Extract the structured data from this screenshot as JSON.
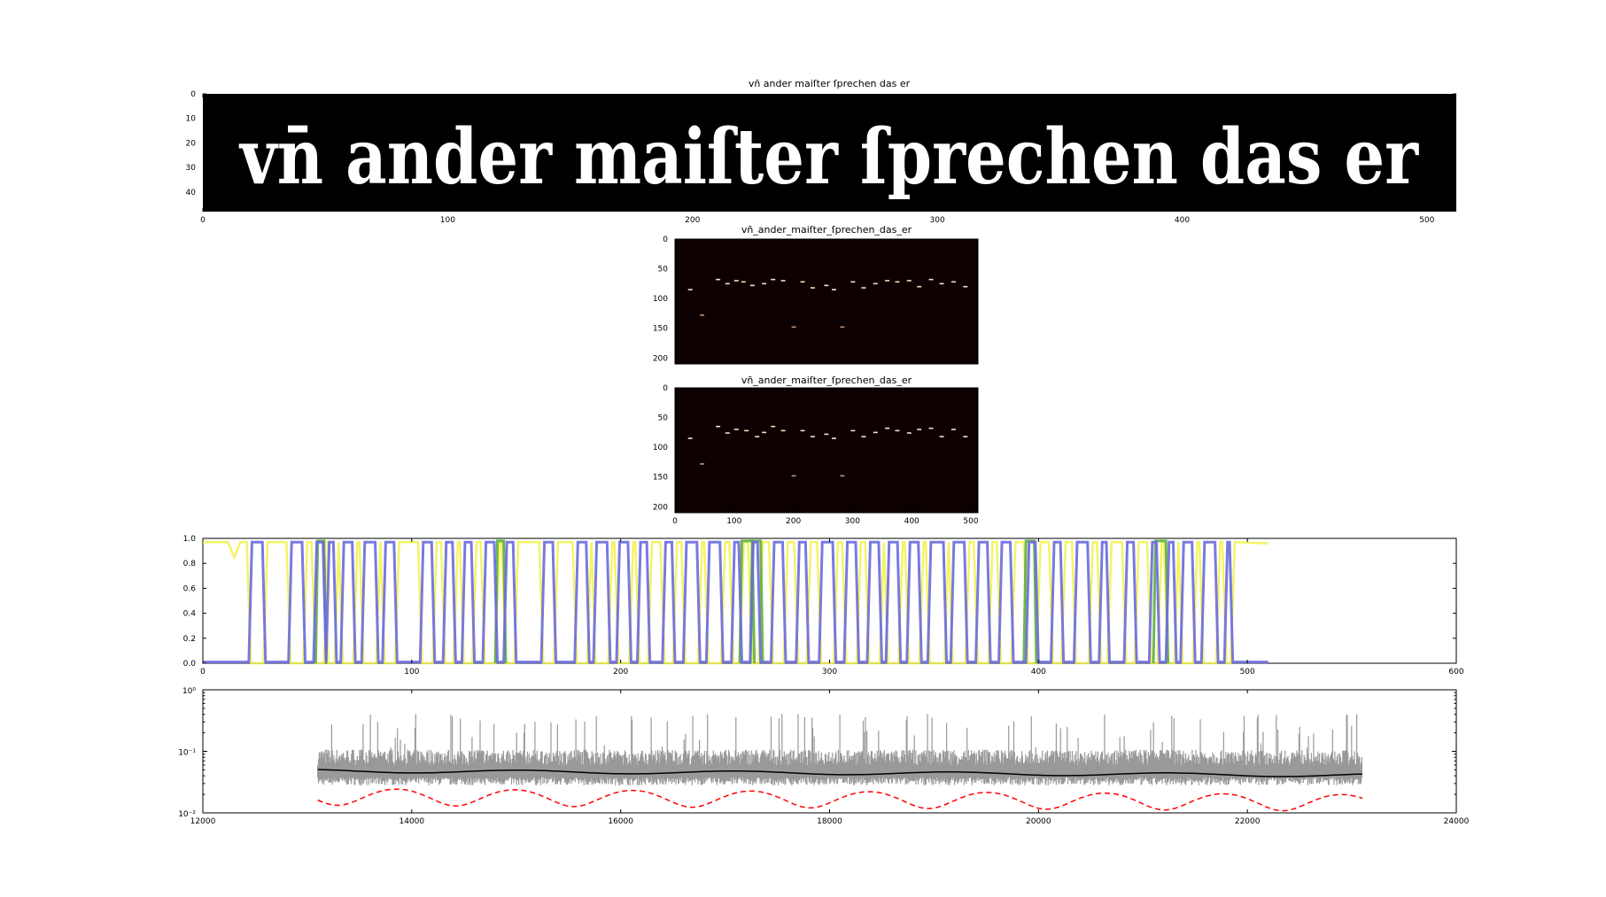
{
  "figure": {
    "panel1_title": "vn̄ ander maiſter ſprechen das er",
    "panel2_title": "vn̄_ander_maiſter_ſprechen_das_er",
    "panel3_title": "vn̄_ander_maiſter_ſprechen_das_er",
    "line_image_text": "vn̄ ander maiſter ſprechen das er"
  },
  "chart_data": [
    {
      "type": "heatmap",
      "title": "vn̄ ander maiſter ſprechen das er",
      "xlabel": "",
      "ylabel": "",
      "xlim": [
        0,
        512
      ],
      "ylim": [
        48,
        0
      ],
      "xticks": [
        0,
        100,
        200,
        300,
        400,
        500
      ],
      "yticks": [
        0,
        10,
        20,
        30,
        40
      ],
      "colormap": "gray"
    },
    {
      "type": "heatmap",
      "title": "vn̄_ander_maiſter_ſprechen_das_er",
      "xlabel": "",
      "ylabel": "",
      "xlim": [
        0,
        512
      ],
      "ylim": [
        210,
        0
      ],
      "xticks": [],
      "yticks": [
        0,
        50,
        100,
        150,
        200
      ],
      "colormap": "hot",
      "points": [
        [
          25,
          85
        ],
        [
          45,
          128
        ],
        [
          72,
          68
        ],
        [
          88,
          75
        ],
        [
          103,
          70
        ],
        [
          115,
          72
        ],
        [
          130,
          78
        ],
        [
          150,
          75
        ],
        [
          165,
          68
        ],
        [
          182,
          70
        ],
        [
          200,
          148
        ],
        [
          215,
          72
        ],
        [
          232,
          82
        ],
        [
          255,
          78
        ],
        [
          268,
          85
        ],
        [
          282,
          148
        ],
        [
          300,
          72
        ],
        [
          318,
          82
        ],
        [
          338,
          75
        ],
        [
          358,
          70
        ],
        [
          375,
          72
        ],
        [
          395,
          70
        ],
        [
          412,
          80
        ],
        [
          432,
          68
        ],
        [
          450,
          75
        ],
        [
          470,
          72
        ],
        [
          490,
          80
        ]
      ]
    },
    {
      "type": "heatmap",
      "title": "vn̄_ander_maiſter_ſprechen_das_er",
      "xlabel": "",
      "ylabel": "",
      "xlim": [
        0,
        512
      ],
      "ylim": [
        210,
        0
      ],
      "xticks": [
        0,
        100,
        200,
        300,
        400,
        500
      ],
      "yticks": [
        0,
        50,
        100,
        150,
        200
      ],
      "colormap": "hot",
      "points": [
        [
          25,
          85
        ],
        [
          45,
          128
        ],
        [
          72,
          65
        ],
        [
          88,
          76
        ],
        [
          103,
          70
        ],
        [
          120,
          72
        ],
        [
          138,
          82
        ],
        [
          150,
          75
        ],
        [
          165,
          65
        ],
        [
          182,
          72
        ],
        [
          200,
          148
        ],
        [
          215,
          72
        ],
        [
          232,
          82
        ],
        [
          255,
          78
        ],
        [
          268,
          85
        ],
        [
          282,
          148
        ],
        [
          300,
          72
        ],
        [
          318,
          82
        ],
        [
          338,
          75
        ],
        [
          358,
          68
        ],
        [
          375,
          72
        ],
        [
          395,
          76
        ],
        [
          412,
          70
        ],
        [
          432,
          68
        ],
        [
          450,
          82
        ],
        [
          470,
          70
        ],
        [
          490,
          82
        ]
      ]
    },
    {
      "type": "line",
      "title": "",
      "xlabel": "",
      "ylabel": "",
      "xlim": [
        0,
        600
      ],
      "ylim": [
        0.0,
        1.0
      ],
      "xticks": [
        0,
        100,
        200,
        300,
        400,
        500,
        600
      ],
      "yticks": [
        0.0,
        0.2,
        0.4,
        0.6,
        0.8,
        1.0
      ],
      "series": [
        {
          "color": "#6a6adf",
          "blue_pulses": [
            [
              22,
              30
            ],
            [
              41,
              49
            ],
            [
              53,
              59
            ],
            [
              59,
              64
            ],
            [
              66,
              73
            ],
            [
              76,
              84
            ],
            [
              86,
              93
            ],
            [
              104,
              111
            ],
            [
              115,
              121
            ],
            [
              124,
              130
            ],
            [
              134,
              141
            ],
            [
              144,
              150
            ],
            [
              162,
              169
            ],
            [
              178,
              185
            ],
            [
              187,
              195
            ],
            [
              198,
              205
            ],
            [
              208,
              214
            ],
            [
              220,
              226
            ],
            [
              230,
              238
            ],
            [
              241,
              249
            ],
            [
              253,
              258
            ],
            [
              262,
              267
            ],
            [
              272,
              279
            ],
            [
              284,
              290
            ],
            [
              295,
              303
            ],
            [
              307,
              314
            ],
            [
              318,
              325
            ],
            [
              327,
              334
            ],
            [
              337,
              344
            ],
            [
              347,
              356
            ],
            [
              358,
              366
            ],
            [
              370,
              377
            ],
            [
              381,
              388
            ],
            [
              394,
              400
            ],
            [
              406,
              412
            ],
            [
              417,
              425
            ],
            [
              429,
              434
            ],
            [
              441,
              447
            ],
            [
              453,
              458
            ],
            [
              461,
              466
            ],
            [
              468,
              475
            ],
            [
              478,
              486
            ],
            [
              489,
              493
            ]
          ]
        },
        {
          "color": "#55aa33",
          "green_pulses": [
            [
              55,
              58
            ],
            [
              141,
              144
            ],
            [
              258,
              263
            ],
            [
              263,
              267
            ],
            [
              394,
              398
            ],
            [
              456,
              461
            ]
          ]
        },
        {
          "color": "#f2f24a",
          "yellow_level": 0.97,
          "xmax": 510
        }
      ]
    },
    {
      "type": "line",
      "title": "",
      "xlabel": "",
      "ylabel": "",
      "xlim": [
        12000,
        24000
      ],
      "ylim": [
        0.01,
        1.0
      ],
      "yscale": "log",
      "xticks": [
        12000,
        14000,
        16000,
        18000,
        20000,
        22000,
        24000
      ],
      "yticks_text": [
        "10⁻²",
        "10⁻¹",
        "10⁰"
      ],
      "series": [
        {
          "color": "#999999",
          "x_range": [
            13100,
            23100
          ],
          "median": 0.05,
          "band": [
            0.03,
            0.09
          ]
        },
        {
          "color": "#000000",
          "x_range": [
            13100,
            23100
          ],
          "approx": 0.048
        },
        {
          "color": "#ff0000",
          "style": "dashed",
          "x_range": [
            13100,
            23100
          ],
          "approx_range": [
            0.012,
            0.03
          ]
        }
      ]
    }
  ]
}
